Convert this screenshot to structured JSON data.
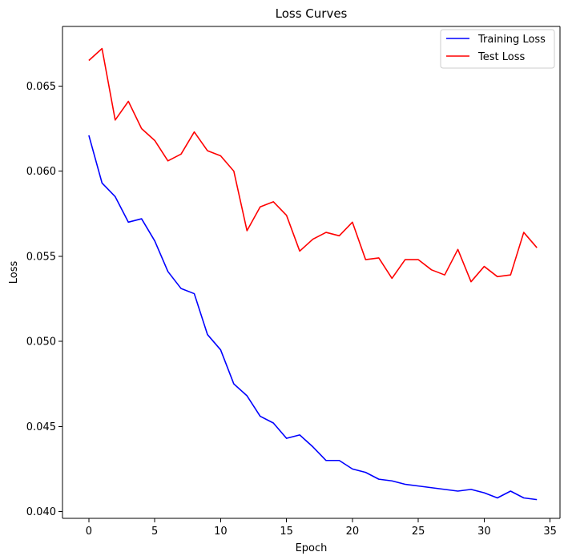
{
  "chart_data": {
    "type": "line",
    "title": "Loss Curves",
    "xlabel": "Epoch",
    "ylabel": "Loss",
    "xlim": [
      -2.0,
      35.75
    ],
    "ylim": [
      0.0396,
      0.0685
    ],
    "xticks": [
      0,
      5,
      10,
      15,
      20,
      25,
      30,
      35
    ],
    "xtick_labels": [
      "0",
      "5",
      "10",
      "15",
      "20",
      "25",
      "30",
      "35"
    ],
    "yticks": [
      0.04,
      0.045,
      0.05,
      0.055,
      0.06,
      0.065
    ],
    "ytick_labels": [
      "0.040",
      "0.045",
      "0.050",
      "0.055",
      "0.060",
      "0.065"
    ],
    "grid": false,
    "legend_position": "top-right",
    "x": [
      0,
      1,
      2,
      3,
      4,
      5,
      6,
      7,
      8,
      9,
      10,
      11,
      12,
      13,
      14,
      15,
      16,
      17,
      18,
      19,
      20,
      21,
      22,
      23,
      24,
      25,
      26,
      27,
      28,
      29,
      30,
      31,
      32,
      33,
      34
    ],
    "series": [
      {
        "name": "Training Loss",
        "color": "#0000ff",
        "values": [
          0.0621,
          0.0593,
          0.0585,
          0.057,
          0.0572,
          0.0559,
          0.0541,
          0.0531,
          0.0528,
          0.0504,
          0.0495,
          0.0475,
          0.0468,
          0.0456,
          0.0452,
          0.0443,
          0.0445,
          0.0438,
          0.043,
          0.043,
          0.0425,
          0.0423,
          0.0419,
          0.0418,
          0.0416,
          0.0415,
          0.0414,
          0.0413,
          0.0412,
          0.0413,
          0.0411,
          0.0408,
          0.0412,
          0.0408,
          0.0407
        ]
      },
      {
        "name": "Test Loss",
        "color": "#ff0000",
        "values": [
          0.0665,
          0.0672,
          0.063,
          0.0641,
          0.0625,
          0.0618,
          0.0606,
          0.061,
          0.0623,
          0.0612,
          0.0609,
          0.06,
          0.0565,
          0.0579,
          0.0582,
          0.0574,
          0.0553,
          0.056,
          0.0564,
          0.0562,
          0.057,
          0.0548,
          0.0549,
          0.0537,
          0.0548,
          0.0548,
          0.0542,
          0.0539,
          0.0554,
          0.0535,
          0.0544,
          0.0538,
          0.0539,
          0.0564,
          0.0555
        ]
      }
    ]
  }
}
